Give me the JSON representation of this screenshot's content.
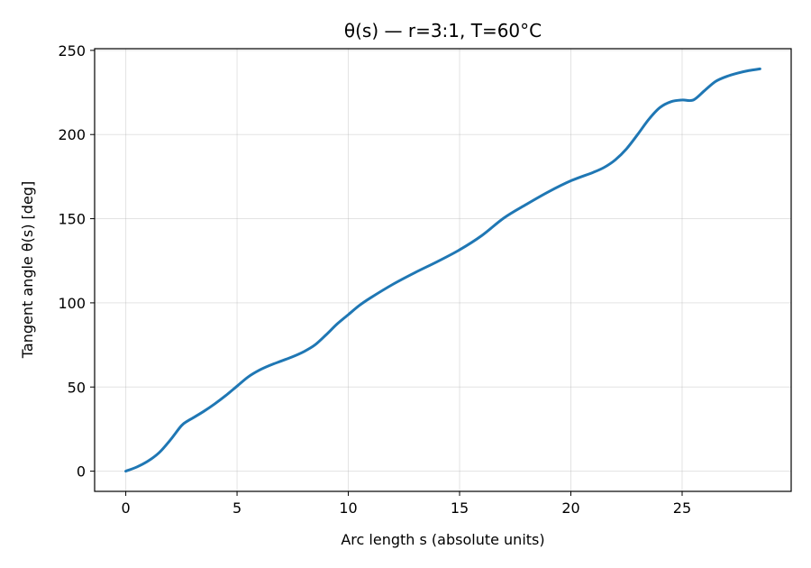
{
  "chart_data": {
    "type": "line",
    "title": "θ(s) — r=3:1, T=60°C",
    "xlabel": "Arc length s (absolute units)",
    "ylabel": "Tangent angle θ(s) [deg]",
    "xlim": [
      -1.4,
      29.9
    ],
    "ylim": [
      -12,
      251
    ],
    "xticks": [
      0,
      5,
      10,
      15,
      20,
      25
    ],
    "yticks": [
      0,
      50,
      100,
      150,
      200,
      250
    ],
    "grid": true,
    "color": "#1f77b4",
    "series": [
      {
        "x": [
          0,
          0.5,
          1.0,
          1.5,
          2.0,
          2.5,
          2.8,
          3.0,
          3.5,
          4.0,
          4.5,
          5.0,
          5.5,
          6.0,
          6.5,
          7.0,
          7.5,
          8.0,
          8.5,
          9.0,
          9.5,
          10.0,
          10.5,
          11.0,
          12.0,
          13.0,
          14.0,
          15.0,
          16.0,
          17.0,
          18.0,
          19.0,
          20.0,
          21.0,
          21.5,
          22.0,
          22.5,
          23.0,
          23.5,
          24.0,
          24.5,
          25.0,
          25.5,
          26.0,
          26.5,
          27.0,
          27.5,
          28.0,
          28.5
        ],
        "y": [
          0,
          2.5,
          6,
          11,
          18.5,
          27,
          30,
          31.5,
          35.5,
          40,
          45,
          50.5,
          56,
          60,
          63,
          65.5,
          68,
          71,
          75,
          81,
          87.5,
          93,
          98.5,
          103,
          111,
          118,
          124.5,
          131.5,
          140,
          150.5,
          158.5,
          166,
          172.5,
          177.5,
          180.5,
          185,
          191.5,
          200,
          209,
          216,
          219.5,
          220.5,
          220.5,
          226,
          231.5,
          234.5,
          236.5,
          238,
          239
        ]
      }
    ]
  }
}
